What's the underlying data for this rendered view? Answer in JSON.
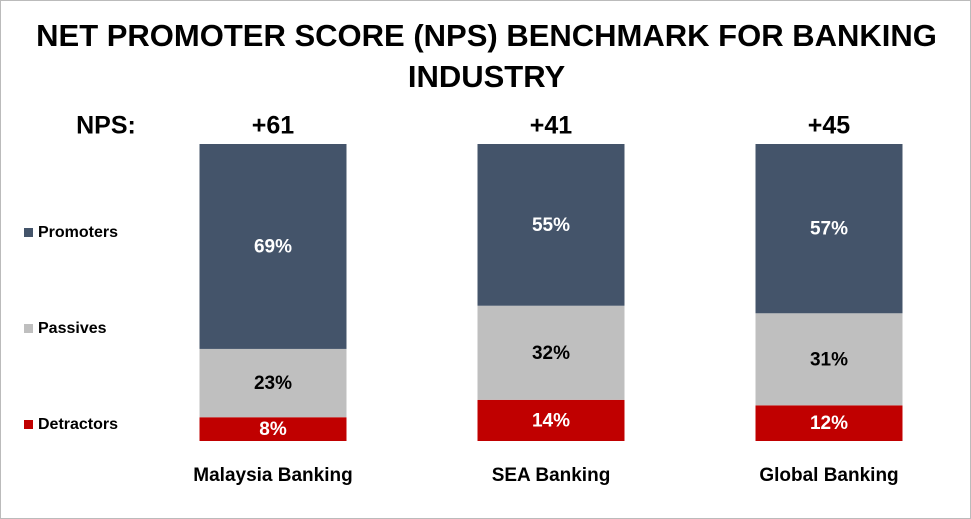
{
  "chart_data": {
    "type": "stacked_bar",
    "title": "NET PROMOTER SCORE (NPS) BENCHMARK FOR BANKING INDUSTRY",
    "nps_label": "NPS:",
    "nps_scores": [
      "+61",
      "+41",
      "+45"
    ],
    "categories": [
      "Malaysia Banking",
      "SEA Banking",
      "Global Banking"
    ],
    "series": [
      {
        "name": "Detractors",
        "color": "#c00000",
        "values": [
          8,
          14,
          12
        ],
        "value_labels": [
          "8%",
          "14%",
          "12%"
        ],
        "label_color": "#ffffff"
      },
      {
        "name": "Passives",
        "color": "#bfbfbf",
        "values": [
          23,
          32,
          31
        ],
        "value_labels": [
          "23%",
          "32%",
          "31%"
        ],
        "label_color": "#000000"
      },
      {
        "name": "Promoters",
        "color": "#44546a",
        "values": [
          69,
          55,
          57
        ],
        "value_labels": [
          "69%",
          "55%",
          "57%"
        ],
        "label_color": "#ffffff"
      }
    ],
    "legend": "left"
  }
}
